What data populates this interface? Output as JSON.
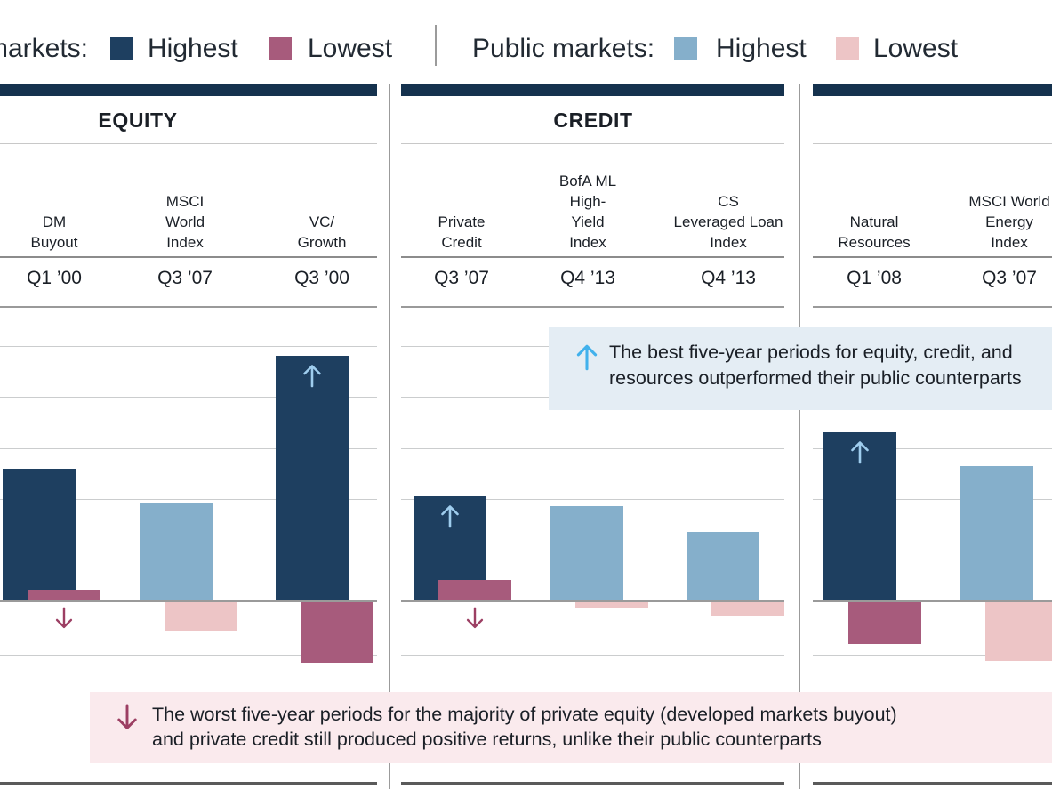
{
  "legend": {
    "private_label_cropped": "markets:",
    "private_highest": "Highest",
    "private_lowest": "Lowest",
    "public_label": "Public markets:",
    "public_highest": "Highest",
    "public_lowest": "Lowest"
  },
  "annotations": {
    "best": {
      "icon": "up-arrow",
      "line1": "The best five-year periods for equity, credit, and",
      "line2": "resources outperformed their public counterparts"
    },
    "worst": {
      "icon": "down-arrow",
      "line1": "The worst five-year periods for the majority of private equity (developed markets buyout)",
      "line2": "and private credit still produced positive returns, unlike their public counterparts"
    }
  },
  "colors": {
    "private_highest": "#1E3F60",
    "private_lowest": "#A75B7C",
    "public_highest": "#85AFCB",
    "public_lowest": "#EDC5C6",
    "header_bar": "#15324E",
    "best_box_bg": "#E4EDF4",
    "worst_box_bg": "#FAEAED",
    "up_arrow_bright": "#41B1EC",
    "up_arrow_soft": "#9FCDEE",
    "down_arrow": "#9C3F63",
    "gridline": "#CBCDCE",
    "zero_line": "#9A9A9A",
    "bottom_line": "#5A5A5A"
  },
  "chart_data": {
    "type": "bar",
    "title": "",
    "xlabel": "",
    "ylabel": "",
    "y_axis_note": "y-axis tick labels are cropped out of the screenshot; values estimated from gridlines at approx 5% per gridline, zero baseline shown",
    "legend_position": "top",
    "grid": true,
    "panels": [
      {
        "title": "EQUITY",
        "columns": [
          {
            "label": "DM Buyout",
            "label_lines": [
              "DM",
              "Buyout"
            ],
            "market": "private",
            "period": "Q1 ’00",
            "highest": 13.0,
            "lowest": 1.1,
            "up_arrow_in_bar": false,
            "down_arrow_below": true
          },
          {
            "label": "MSCI World Index",
            "label_lines": [
              "MSCI",
              "World",
              "Index"
            ],
            "market": "public",
            "period": "Q3 ’07",
            "highest": 9.6,
            "lowest": -2.9,
            "up_arrow_in_bar": false,
            "down_arrow_below": false
          },
          {
            "label": "VC/Growth",
            "label_lines": [
              "VC/",
              "Growth"
            ],
            "market": "private",
            "period": "Q3 ’00",
            "highest": 24.0,
            "lowest": -6.0,
            "up_arrow_in_bar": true,
            "down_arrow_below": false
          }
        ]
      },
      {
        "title": "CREDIT",
        "columns": [
          {
            "label": "Private Credit",
            "label_lines": [
              "Private",
              "Credit"
            ],
            "market": "private",
            "period": "Q3 ’07",
            "highest": 10.3,
            "lowest": 2.1,
            "up_arrow_in_bar": true,
            "down_arrow_below": true
          },
          {
            "label": "BofA ML High-Yield Index",
            "label_lines": [
              "BofA ML",
              "High-",
              "Yield",
              "Index"
            ],
            "market": "public",
            "period": "Q4 ’13",
            "highest": 9.3,
            "lowest": -0.7,
            "up_arrow_in_bar": false,
            "down_arrow_below": false
          },
          {
            "label": "CS Leveraged Loan Index",
            "label_lines": [
              "CS",
              "Leveraged Loan",
              "Index"
            ],
            "market": "public",
            "period": "Q4 ’13",
            "highest": 6.8,
            "lowest": -1.4,
            "up_arrow_in_bar": false,
            "down_arrow_below": false
          }
        ]
      },
      {
        "title": "",
        "columns": [
          {
            "label": "Natural Resources",
            "label_lines": [
              "Natural",
              "Resources"
            ],
            "market": "private",
            "period": "Q1 ’08",
            "highest": 16.5,
            "lowest": -4.2,
            "up_arrow_in_bar": true,
            "down_arrow_below": false
          },
          {
            "label": "MSCI World Energy Index",
            "label_lines": [
              "MSCI World",
              "Energy",
              "Index"
            ],
            "market": "public",
            "period": "Q3 ’07",
            "highest": 13.2,
            "lowest": -5.8,
            "up_arrow_in_bar": false,
            "down_arrow_below": false
          }
        ]
      }
    ]
  }
}
